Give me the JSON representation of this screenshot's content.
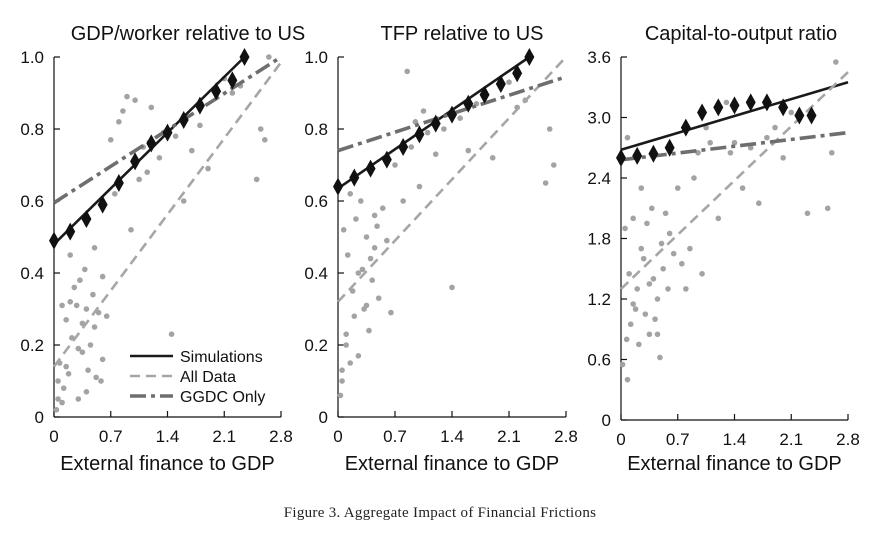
{
  "figure": {
    "caption": "Figure 3. Aggregate Impact of Financial Frictions"
  },
  "chart_data": [
    {
      "type": "scatter",
      "title": "GDP/worker relative to US",
      "xlabel": "External finance to GDP",
      "ylabel": "",
      "xlim": [
        0,
        2.8
      ],
      "ylim": [
        0,
        1.0
      ],
      "xticks": [
        "0",
        "0.7",
        "1.4",
        "2.1",
        "2.8"
      ],
      "yticks": [
        "0",
        "0.2",
        "0.4",
        "0.6",
        "0.8",
        "1.0"
      ],
      "legend": [
        "Simulations",
        "All Data",
        "GGDC Only"
      ],
      "legend_position": "bottom-right",
      "series": [
        {
          "name": "Simulations",
          "kind": "markers-diamond",
          "x": [
            0.0,
            0.2,
            0.4,
            0.6,
            0.8,
            1.0,
            1.2,
            1.4,
            1.6,
            1.8,
            2.0,
            2.2,
            2.35
          ],
          "y": [
            0.49,
            0.515,
            0.55,
            0.59,
            0.65,
            0.71,
            0.76,
            0.79,
            0.825,
            0.865,
            0.905,
            0.935,
            1.0
          ]
        },
        {
          "name": "Simulations",
          "kind": "line-solid",
          "x": [
            0.0,
            2.35
          ],
          "y": [
            0.48,
            1.0
          ]
        },
        {
          "name": "All Data",
          "kind": "line-dashed",
          "x": [
            0.0,
            2.8
          ],
          "y": [
            0.14,
            0.985
          ]
        },
        {
          "name": "GGDC Only",
          "kind": "line-dashdot",
          "x": [
            0.0,
            2.8
          ],
          "y": [
            0.595,
            1.0
          ]
        },
        {
          "name": "All Data points",
          "kind": "points",
          "x": [
            0.03,
            0.05,
            0.07,
            0.1,
            0.12,
            0.15,
            0.18,
            0.2,
            0.22,
            0.25,
            0.28,
            0.3,
            0.32,
            0.35,
            0.38,
            0.4,
            0.42,
            0.45,
            0.48,
            0.5,
            0.52,
            0.55,
            0.58,
            0.6,
            0.65,
            0.7,
            0.75,
            0.8,
            0.85,
            0.9,
            0.95,
            1.0,
            1.05,
            1.1,
            1.15,
            1.2,
            1.3,
            1.35,
            1.45,
            1.5,
            1.6,
            1.7,
            1.8,
            1.9,
            2.1,
            2.2,
            2.3,
            2.5,
            2.55,
            2.6,
            2.65,
            0.05,
            0.1,
            0.15,
            0.3,
            0.35,
            0.4,
            0.6,
            0.2,
            0.5
          ],
          "y": [
            0.02,
            0.05,
            0.15,
            0.31,
            0.08,
            0.27,
            0.12,
            0.45,
            0.22,
            0.36,
            0.31,
            0.05,
            0.38,
            0.18,
            0.41,
            0.3,
            0.13,
            0.2,
            0.34,
            0.25,
            0.11,
            0.29,
            0.1,
            0.16,
            0.28,
            0.77,
            0.62,
            0.82,
            0.85,
            0.89,
            0.52,
            0.88,
            0.66,
            0.75,
            0.68,
            0.86,
            0.72,
            0.79,
            0.23,
            0.78,
            0.6,
            0.74,
            0.81,
            0.69,
            0.94,
            0.9,
            0.92,
            0.66,
            0.8,
            0.77,
            1.0,
            0.1,
            0.04,
            0.14,
            0.19,
            0.26,
            0.07,
            0.39,
            0.32,
            0.47
          ]
        }
      ]
    },
    {
      "type": "scatter",
      "title": "TFP relative to US",
      "xlabel": "External finance to GDP",
      "ylabel": "",
      "xlim": [
        0,
        2.8
      ],
      "ylim": [
        0,
        1.0
      ],
      "xticks": [
        "0",
        "0.7",
        "1.4",
        "2.1",
        "2.8"
      ],
      "yticks": [
        "0",
        "0.2",
        "0.4",
        "0.6",
        "0.8",
        "1.0"
      ],
      "series": [
        {
          "name": "Simulations",
          "kind": "markers-diamond",
          "x": [
            0.0,
            0.2,
            0.4,
            0.6,
            0.8,
            1.0,
            1.2,
            1.4,
            1.6,
            1.8,
            2.0,
            2.2,
            2.35
          ],
          "y": [
            0.64,
            0.665,
            0.69,
            0.715,
            0.75,
            0.785,
            0.815,
            0.84,
            0.87,
            0.895,
            0.925,
            0.955,
            1.0
          ]
        },
        {
          "name": "Simulations",
          "kind": "line-solid",
          "x": [
            0.0,
            2.35
          ],
          "y": [
            0.635,
            1.0
          ]
        },
        {
          "name": "All Data",
          "kind": "line-dashed",
          "x": [
            0.0,
            2.8
          ],
          "y": [
            0.32,
            1.0
          ]
        },
        {
          "name": "GGDC Only",
          "kind": "line-dashdot",
          "x": [
            0.0,
            2.8
          ],
          "y": [
            0.74,
            0.945
          ]
        },
        {
          "name": "All Data points",
          "kind": "points",
          "x": [
            0.03,
            0.05,
            0.07,
            0.1,
            0.12,
            0.15,
            0.18,
            0.2,
            0.22,
            0.25,
            0.28,
            0.3,
            0.32,
            0.35,
            0.38,
            0.4,
            0.42,
            0.45,
            0.48,
            0.5,
            0.55,
            0.6,
            0.65,
            0.7,
            0.8,
            0.85,
            0.9,
            0.95,
            1.0,
            1.05,
            1.1,
            1.2,
            1.3,
            1.4,
            1.5,
            1.6,
            1.7,
            1.8,
            1.9,
            2.1,
            2.2,
            2.3,
            2.55,
            2.6,
            2.65,
            0.05,
            0.1,
            0.15,
            0.25,
            0.35,
            0.45
          ],
          "y": [
            0.06,
            0.13,
            0.52,
            0.2,
            0.45,
            0.62,
            0.35,
            0.28,
            0.55,
            0.17,
            0.6,
            0.41,
            0.3,
            0.5,
            0.24,
            0.44,
            0.38,
            0.47,
            0.53,
            0.33,
            0.58,
            0.49,
            0.29,
            0.7,
            0.6,
            0.96,
            0.75,
            0.82,
            0.64,
            0.85,
            0.79,
            0.73,
            0.8,
            0.36,
            0.83,
            0.74,
            0.87,
            0.9,
            0.72,
            0.93,
            0.86,
            0.88,
            0.65,
            0.8,
            0.7,
            0.1,
            0.23,
            0.15,
            0.4,
            0.31,
            0.56
          ]
        }
      ]
    },
    {
      "type": "scatter",
      "title": "Capital-to-output ratio",
      "xlabel": "External finance to GDP",
      "ylabel": "",
      "xlim": [
        0,
        2.8
      ],
      "ylim": [
        0,
        3.6
      ],
      "xticks": [
        "0",
        "0.7",
        "1.4",
        "2.1",
        "2.8"
      ],
      "yticks": [
        "0",
        "0.6",
        "1.2",
        "1.8",
        "2.4",
        "3.0",
        "3.6"
      ],
      "series": [
        {
          "name": "Simulations",
          "kind": "markers-diamond",
          "x": [
            0.0,
            0.2,
            0.4,
            0.6,
            0.8,
            1.0,
            1.2,
            1.4,
            1.6,
            1.8,
            2.0,
            2.2,
            2.35
          ],
          "y": [
            2.6,
            2.62,
            2.64,
            2.7,
            2.9,
            3.05,
            3.1,
            3.12,
            3.15,
            3.15,
            3.1,
            3.02,
            3.02
          ]
        },
        {
          "name": "Simulations",
          "kind": "line-solid",
          "x": [
            0.0,
            2.8
          ],
          "y": [
            2.68,
            3.35
          ]
        },
        {
          "name": "All Data",
          "kind": "line-dashed",
          "x": [
            0.0,
            2.8
          ],
          "y": [
            1.3,
            3.45
          ]
        },
        {
          "name": "GGDC Only",
          "kind": "line-dashdot",
          "x": [
            0.0,
            2.8
          ],
          "y": [
            2.58,
            2.85
          ]
        },
        {
          "name": "All Data points",
          "kind": "points",
          "x": [
            0.02,
            0.05,
            0.07,
            0.08,
            0.1,
            0.12,
            0.15,
            0.18,
            0.2,
            0.22,
            0.25,
            0.28,
            0.3,
            0.32,
            0.35,
            0.38,
            0.4,
            0.42,
            0.45,
            0.48,
            0.5,
            0.52,
            0.55,
            0.58,
            0.6,
            0.65,
            0.7,
            0.75,
            0.8,
            0.85,
            0.9,
            0.95,
            1.0,
            1.05,
            1.1,
            1.2,
            1.3,
            1.35,
            1.4,
            1.5,
            1.6,
            1.7,
            1.8,
            1.9,
            2.0,
            2.1,
            2.3,
            2.55,
            2.6,
            2.65,
            0.08,
            0.15,
            0.25,
            0.35,
            0.45
          ],
          "y": [
            0.55,
            1.9,
            0.8,
            2.8,
            1.45,
            0.95,
            2.0,
            1.1,
            1.3,
            0.75,
            2.3,
            1.6,
            1.05,
            1.95,
            0.85,
            2.1,
            1.4,
            1.0,
            1.2,
            0.62,
            1.75,
            1.5,
            2.05,
            1.3,
            1.85,
            1.65,
            2.3,
            1.55,
            1.3,
            1.7,
            2.4,
            2.65,
            1.45,
            2.9,
            2.75,
            2.0,
            3.15,
            2.65,
            2.75,
            2.3,
            2.7,
            2.15,
            2.8,
            2.9,
            2.6,
            3.05,
            2.05,
            2.1,
            2.65,
            3.55,
            0.4,
            1.15,
            1.7,
            1.35,
            0.85
          ]
        }
      ]
    }
  ]
}
